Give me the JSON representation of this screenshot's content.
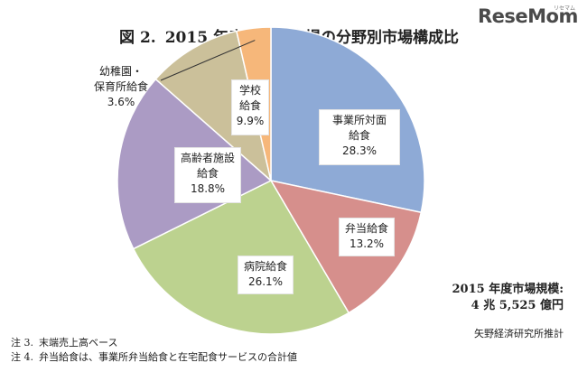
{
  "header": {
    "figure_label": "図 2.",
    "title": "2015 年度の給食市場の分野別市場構成比"
  },
  "logo": {
    "text": "ReseMom",
    "sup": "リセマム"
  },
  "chart_data": {
    "type": "pie",
    "title": "2015 年度の給食市場の分野別市場構成比",
    "start_angle_deg": 0,
    "direction": "clockwise",
    "slices": [
      {
        "name_lines": [
          "事業所対面",
          "給食"
        ],
        "value": 28.3,
        "value_label": "28.3%",
        "color": "#8eaad6"
      },
      {
        "name_lines": [
          "弁当給食"
        ],
        "value": 13.2,
        "value_label": "13.2%",
        "color": "#d68f8c"
      },
      {
        "name_lines": [
          "病院給食"
        ],
        "value": 26.1,
        "value_label": "26.1%",
        "color": "#bcd28f"
      },
      {
        "name_lines": [
          "高齢者施設",
          "給食"
        ],
        "value": 18.8,
        "value_label": "18.8%",
        "color": "#ab9bc4"
      },
      {
        "name_lines": [
          "学校",
          "給食"
        ],
        "value": 9.9,
        "value_label": "9.9%",
        "color": "#cbc09a"
      },
      {
        "name_lines": [
          "幼稚園・",
          "保育所給食"
        ],
        "value": 3.6,
        "value_label": "3.6%",
        "color": "#f6b77a"
      }
    ]
  },
  "market_size": {
    "line1": "2015 年度市場規模:",
    "line2": "4 兆 5,525 億円"
  },
  "source": "矢野経済研究所推計",
  "notes": [
    {
      "num": "注 3.",
      "text": "末端売上高ベース"
    },
    {
      "num": "注 4.",
      "text": "弁当給食は、事業所弁当給食と在宅配食サービスの合計値"
    }
  ]
}
